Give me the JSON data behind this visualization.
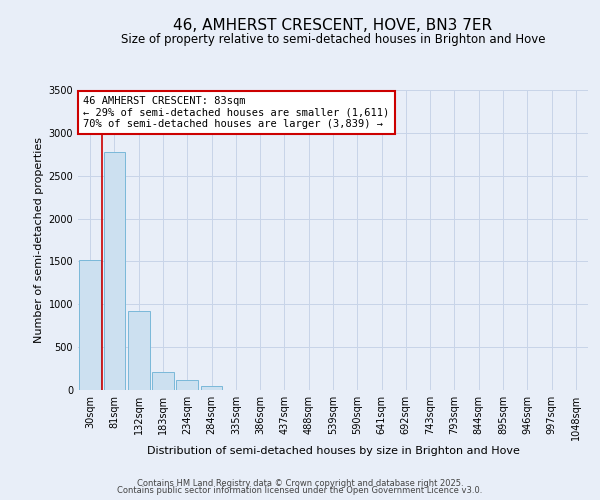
{
  "title": "46, AMHERST CRESCENT, HOVE, BN3 7ER",
  "subtitle": "Size of property relative to semi-detached houses in Brighton and Hove",
  "xlabel": "Distribution of semi-detached houses by size in Brighton and Hove",
  "ylabel": "Number of semi-detached properties",
  "bar_labels": [
    "30sqm",
    "81sqm",
    "132sqm",
    "183sqm",
    "234sqm",
    "284sqm",
    "335sqm",
    "386sqm",
    "437sqm",
    "488sqm",
    "539sqm",
    "590sqm",
    "641sqm",
    "692sqm",
    "743sqm",
    "793sqm",
    "844sqm",
    "895sqm",
    "946sqm",
    "997sqm",
    "1048sqm"
  ],
  "bar_values": [
    1511,
    2780,
    920,
    215,
    115,
    50,
    5,
    0,
    0,
    0,
    0,
    0,
    0,
    0,
    0,
    0,
    0,
    0,
    0,
    0,
    0
  ],
  "bar_color": "#cce0f0",
  "bar_edge_color": "#7ab8d9",
  "annotation_title": "46 AMHERST CRESCENT: 83sqm",
  "annotation_line1": "← 29% of semi-detached houses are smaller (1,611)",
  "annotation_line2": "70% of semi-detached houses are larger (3,839) →",
  "annotation_box_color": "#ffffff",
  "annotation_box_edge": "#cc0000",
  "vline_color": "#cc0000",
  "ylim": [
    0,
    3500
  ],
  "yticks": [
    0,
    500,
    1000,
    1500,
    2000,
    2500,
    3000,
    3500
  ],
  "grid_color": "#c8d4e8",
  "bg_color": "#e8eef8",
  "footer1": "Contains HM Land Registry data © Crown copyright and database right 2025.",
  "footer2": "Contains public sector information licensed under the Open Government Licence v3.0.",
  "title_fontsize": 11,
  "subtitle_fontsize": 8.5,
  "axis_label_fontsize": 8,
  "tick_fontsize": 7,
  "annotation_fontsize": 7.5,
  "footer_fontsize": 6
}
